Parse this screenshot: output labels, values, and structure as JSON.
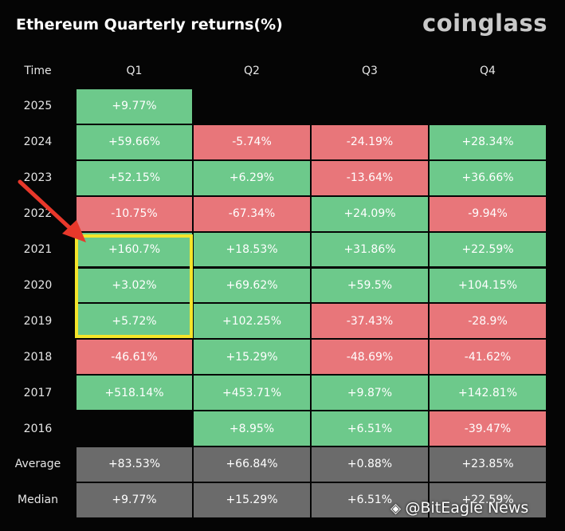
{
  "header": {
    "title": "Ethereum Quarterly returns(%)",
    "logo": "coinglass"
  },
  "table": {
    "columns": [
      "Time",
      "Q1",
      "Q2",
      "Q3",
      "Q4"
    ],
    "rows": [
      [
        "2025",
        "+9.77%",
        null,
        null,
        null
      ],
      [
        "2024",
        "+59.66%",
        "-5.74%",
        "-24.19%",
        "+28.34%"
      ],
      [
        "2023",
        "+52.15%",
        "+6.29%",
        "-13.64%",
        "+36.66%"
      ],
      [
        "2022",
        "-10.75%",
        "-67.34%",
        "+24.09%",
        "-9.94%"
      ],
      [
        "2021",
        "+160.7%",
        "+18.53%",
        "+31.86%",
        "+22.59%"
      ],
      [
        "2020",
        "+3.02%",
        "+69.62%",
        "+59.5%",
        "+104.15%"
      ],
      [
        "2019",
        "+5.72%",
        "+102.25%",
        "-37.43%",
        "-28.9%"
      ],
      [
        "2018",
        "-46.61%",
        "+15.29%",
        "-48.69%",
        "-41.62%"
      ],
      [
        "2017",
        "+518.14%",
        "+453.71%",
        "+9.87%",
        "+142.81%"
      ],
      [
        "2016",
        null,
        "+8.95%",
        "+6.51%",
        "-39.47%"
      ]
    ],
    "summary_rows": [
      [
        "Average",
        "+83.53%",
        "+66.84%",
        "+0.88%",
        "+23.85%"
      ],
      [
        "Median",
        "+9.77%",
        "+15.29%",
        "+6.51%",
        "+22.59%"
      ]
    ],
    "colors": {
      "positive": "#6dc98b",
      "negative": "#e8767a",
      "summary": "#6b6b6b"
    }
  },
  "watermark": "@BitEagle News"
}
